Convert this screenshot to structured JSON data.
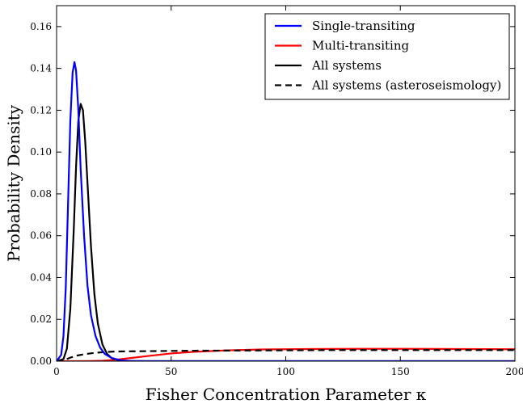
{
  "chart_data": {
    "type": "line",
    "title": "",
    "xlabel": "Fisher Concentration Parameter κ",
    "ylabel": "Probability Density",
    "xlim": [
      0,
      200
    ],
    "ylim": [
      0,
      0.17
    ],
    "x_ticks": [
      0,
      50,
      100,
      150,
      200
    ],
    "x_tick_labels": [
      "0",
      "50",
      "100",
      "150",
      "200"
    ],
    "y_ticks": [
      0,
      0.02,
      0.04,
      0.06,
      0.08,
      0.1,
      0.12,
      0.14,
      0.16
    ],
    "y_tick_labels": [
      "0.00",
      "0.02",
      "0.04",
      "0.06",
      "0.08",
      "0.10",
      "0.12",
      "0.14",
      "0.16"
    ],
    "grid": false,
    "legend_position": "top-right",
    "series": [
      {
        "name": "Single-transiting",
        "color": "#0000ff",
        "style": "solid",
        "x": [
          0,
          2,
          3,
          4,
          5,
          6,
          7,
          7.8,
          8.5,
          9.5,
          10.5,
          12,
          13.5,
          15,
          17,
          19,
          21,
          24,
          28,
          32,
          40,
          200
        ],
        "y": [
          0,
          0.003,
          0.012,
          0.035,
          0.075,
          0.115,
          0.138,
          0.143,
          0.139,
          0.12,
          0.092,
          0.06,
          0.036,
          0.022,
          0.012,
          0.0065,
          0.0035,
          0.0015,
          0.0004,
          0.0001,
          0,
          0
        ]
      },
      {
        "name": "Multi-transiting",
        "color": "#ff0000",
        "style": "solid",
        "x": [
          0,
          10,
          15,
          20,
          25,
          30,
          40,
          50,
          60,
          75,
          90,
          110,
          130,
          150,
          175,
          200
        ],
        "y": [
          0,
          0,
          5e-05,
          0.0002,
          0.0006,
          0.0012,
          0.0025,
          0.0037,
          0.0045,
          0.0052,
          0.0056,
          0.0058,
          0.0059,
          0.0059,
          0.0058,
          0.0057
        ]
      },
      {
        "name": "All systems",
        "color": "#000000",
        "style": "solid",
        "x": [
          0,
          3,
          4.5,
          6,
          7.5,
          8.5,
          9.5,
          10.5,
          11.5,
          12.5,
          13.5,
          15,
          16.5,
          18,
          20,
          22,
          24,
          27,
          30,
          35,
          45,
          200
        ],
        "y": [
          0,
          0.001,
          0.006,
          0.025,
          0.063,
          0.093,
          0.115,
          0.123,
          0.12,
          0.105,
          0.085,
          0.055,
          0.032,
          0.018,
          0.008,
          0.0035,
          0.0015,
          0.0004,
          0.0001,
          0,
          0,
          0
        ]
      },
      {
        "name": "All systems (asteroseismology)",
        "color": "#000000",
        "style": "dashed",
        "x": [
          0,
          2,
          4,
          6,
          9,
          12,
          16,
          20,
          25,
          30,
          40,
          60,
          80,
          100,
          120,
          150,
          175,
          200
        ],
        "y": [
          0,
          0.0002,
          0.0008,
          0.0017,
          0.0027,
          0.0033,
          0.0039,
          0.0043,
          0.0046,
          0.0047,
          0.0048,
          0.005,
          0.0051,
          0.0052,
          0.0053,
          0.0053,
          0.0053,
          0.0053
        ]
      }
    ]
  }
}
